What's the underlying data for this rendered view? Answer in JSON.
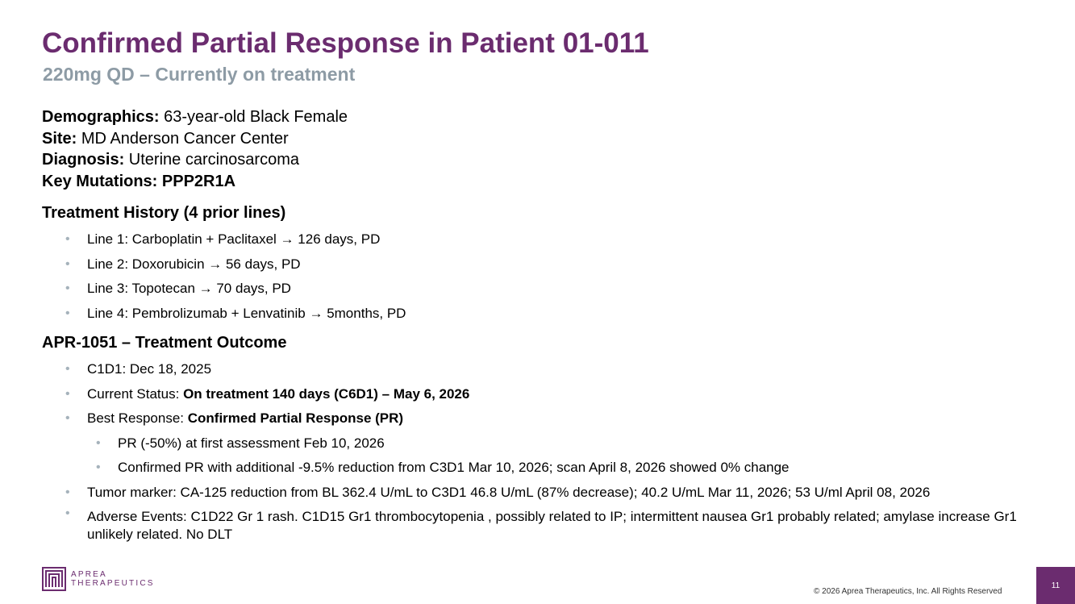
{
  "title": "Confirmed Partial Response in Patient 01-011",
  "subtitle": "220mg QD – Currently on treatment",
  "demographics": {
    "demographics_label": "Demographics:",
    "demographics_value": " 63-year-old Black Female",
    "site_label": "Site:",
    "site_value": " MD Anderson Cancer Center",
    "diagnosis_label": "Diagnosis:",
    "diagnosis_value": " Uterine carcinosarcoma",
    "mutations_label": "Key Mutations: PPP2R1A"
  },
  "treatment_history": {
    "heading": "Treatment History (4 prior lines)",
    "lines": [
      "Line 1: Carboplatin + Paclitaxel → 126 days, PD",
      "Line 2: Doxorubicin → 56 days, PD",
      "Line 3: Topotecan → 70 days, PD",
      "Line 4: Pembrolizumab + Lenvatinib → 5months, PD"
    ]
  },
  "outcome": {
    "heading": "APR-1051 – Treatment Outcome",
    "c1d1": "C1D1: Dec 18, 2025",
    "status_label": "Current Status: ",
    "status_value": "On treatment 140 days (C6D1) – May 6, 2026",
    "best_label": "Best Response: ",
    "best_value": "Confirmed Partial Response (PR)",
    "sub1": "PR (-50%) at first assessment Feb 10, 2026",
    "sub2": "Confirmed PR with additional -9.5% reduction from C3D1 Mar 10, 2026; scan April 8, 2026 showed 0% change",
    "tumor_marker": "Tumor marker: CA-125 reduction from BL 362.4 U/mL to C3D1 46.8 U/mL (87% decrease); 40.2 U/mL Mar 11, 2026; 53 U/ml April 08, 2026",
    "adverse_events": "Adverse Events: C1D22 Gr 1 rash. C1D15 Gr1 thrombocytopenia , possibly related to IP; intermittent nausea Gr1 probably related; amylase increase Gr1 unlikely related. No DLT"
  },
  "footer": {
    "logo_line1": "APREA",
    "logo_line2": "THERAPEUTICS",
    "copyright": "© 2026 Aprea Therapeutics, Inc. All Rights Reserved",
    "page_number": "11"
  },
  "colors": {
    "brand_purple": "#6b2c6f",
    "subtitle_gray": "#8d9ba5",
    "bullet_gray": "#a5b2bb"
  }
}
